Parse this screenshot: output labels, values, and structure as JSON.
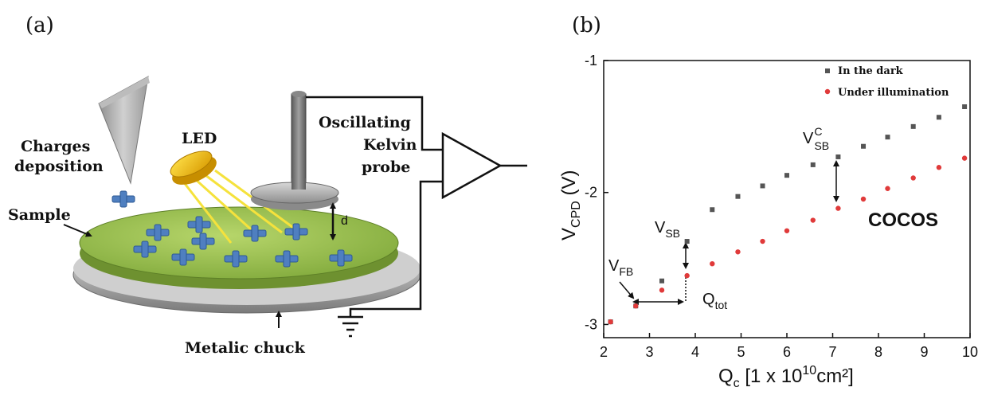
{
  "panel_a": {
    "label": "(a)",
    "labels": {
      "charges_line1": "Charges",
      "charges_line2": "deposition",
      "led": "LED",
      "kelvin_line1": "Oscillating",
      "kelvin_line2": "Kelvin",
      "kelvin_line3": "probe",
      "sample": "Sample",
      "distance": "d",
      "chuck": "Metalic chuck"
    }
  },
  "panel_b": {
    "label": "(b)"
  },
  "chart_data": {
    "type": "scatter",
    "xlabel": {
      "main": "Q",
      "sub": "c",
      "rest": " [1 x 10",
      "sup": "10",
      "tail": "cm²]"
    },
    "ylabel": {
      "main": "V",
      "sub": "CPD",
      "rest": " (V)"
    },
    "xlim": [
      2,
      10
    ],
    "ylim": [
      -3.1,
      -1
    ],
    "xticks": [
      2,
      3,
      4,
      5,
      6,
      7,
      8,
      9,
      10
    ],
    "yticks": [
      -3,
      -2,
      -1
    ],
    "legend_position": "top-right",
    "series": [
      {
        "name": "In the dark",
        "color": "#555555",
        "marker": "square",
        "points": [
          [
            2.15,
            -2.98
          ],
          [
            2.7,
            -2.86
          ],
          [
            3.27,
            -2.67
          ],
          [
            3.82,
            -2.37
          ],
          [
            4.37,
            -2.13
          ],
          [
            4.93,
            -2.03
          ],
          [
            5.47,
            -1.95
          ],
          [
            6.0,
            -1.87
          ],
          [
            6.57,
            -1.79
          ],
          [
            7.12,
            -1.73
          ],
          [
            7.67,
            -1.65
          ],
          [
            8.2,
            -1.58
          ],
          [
            8.76,
            -1.5
          ],
          [
            9.32,
            -1.43
          ],
          [
            9.88,
            -1.35
          ]
        ]
      },
      {
        "name": "Under illumination",
        "color": "#e03a3a",
        "marker": "circle",
        "points": [
          [
            2.15,
            -2.98
          ],
          [
            2.7,
            -2.86
          ],
          [
            3.27,
            -2.74
          ],
          [
            3.82,
            -2.63
          ],
          [
            4.37,
            -2.54
          ],
          [
            4.93,
            -2.45
          ],
          [
            5.47,
            -2.37
          ],
          [
            6.0,
            -2.29
          ],
          [
            6.57,
            -2.21
          ],
          [
            7.12,
            -2.12
          ],
          [
            7.67,
            -2.05
          ],
          [
            8.2,
            -1.97
          ],
          [
            8.76,
            -1.89
          ],
          [
            9.32,
            -1.81
          ],
          [
            9.88,
            -1.74
          ]
        ]
      }
    ],
    "annotations": {
      "vfb": {
        "main": "V",
        "sub": "FB"
      },
      "vsb": {
        "main": "V",
        "sub": "SB"
      },
      "vsbc": {
        "main": "V",
        "sub": "SB",
        "sup": "C"
      },
      "qtot": {
        "main": "Q",
        "sub": "tot"
      },
      "cocos": "COCOS"
    }
  }
}
